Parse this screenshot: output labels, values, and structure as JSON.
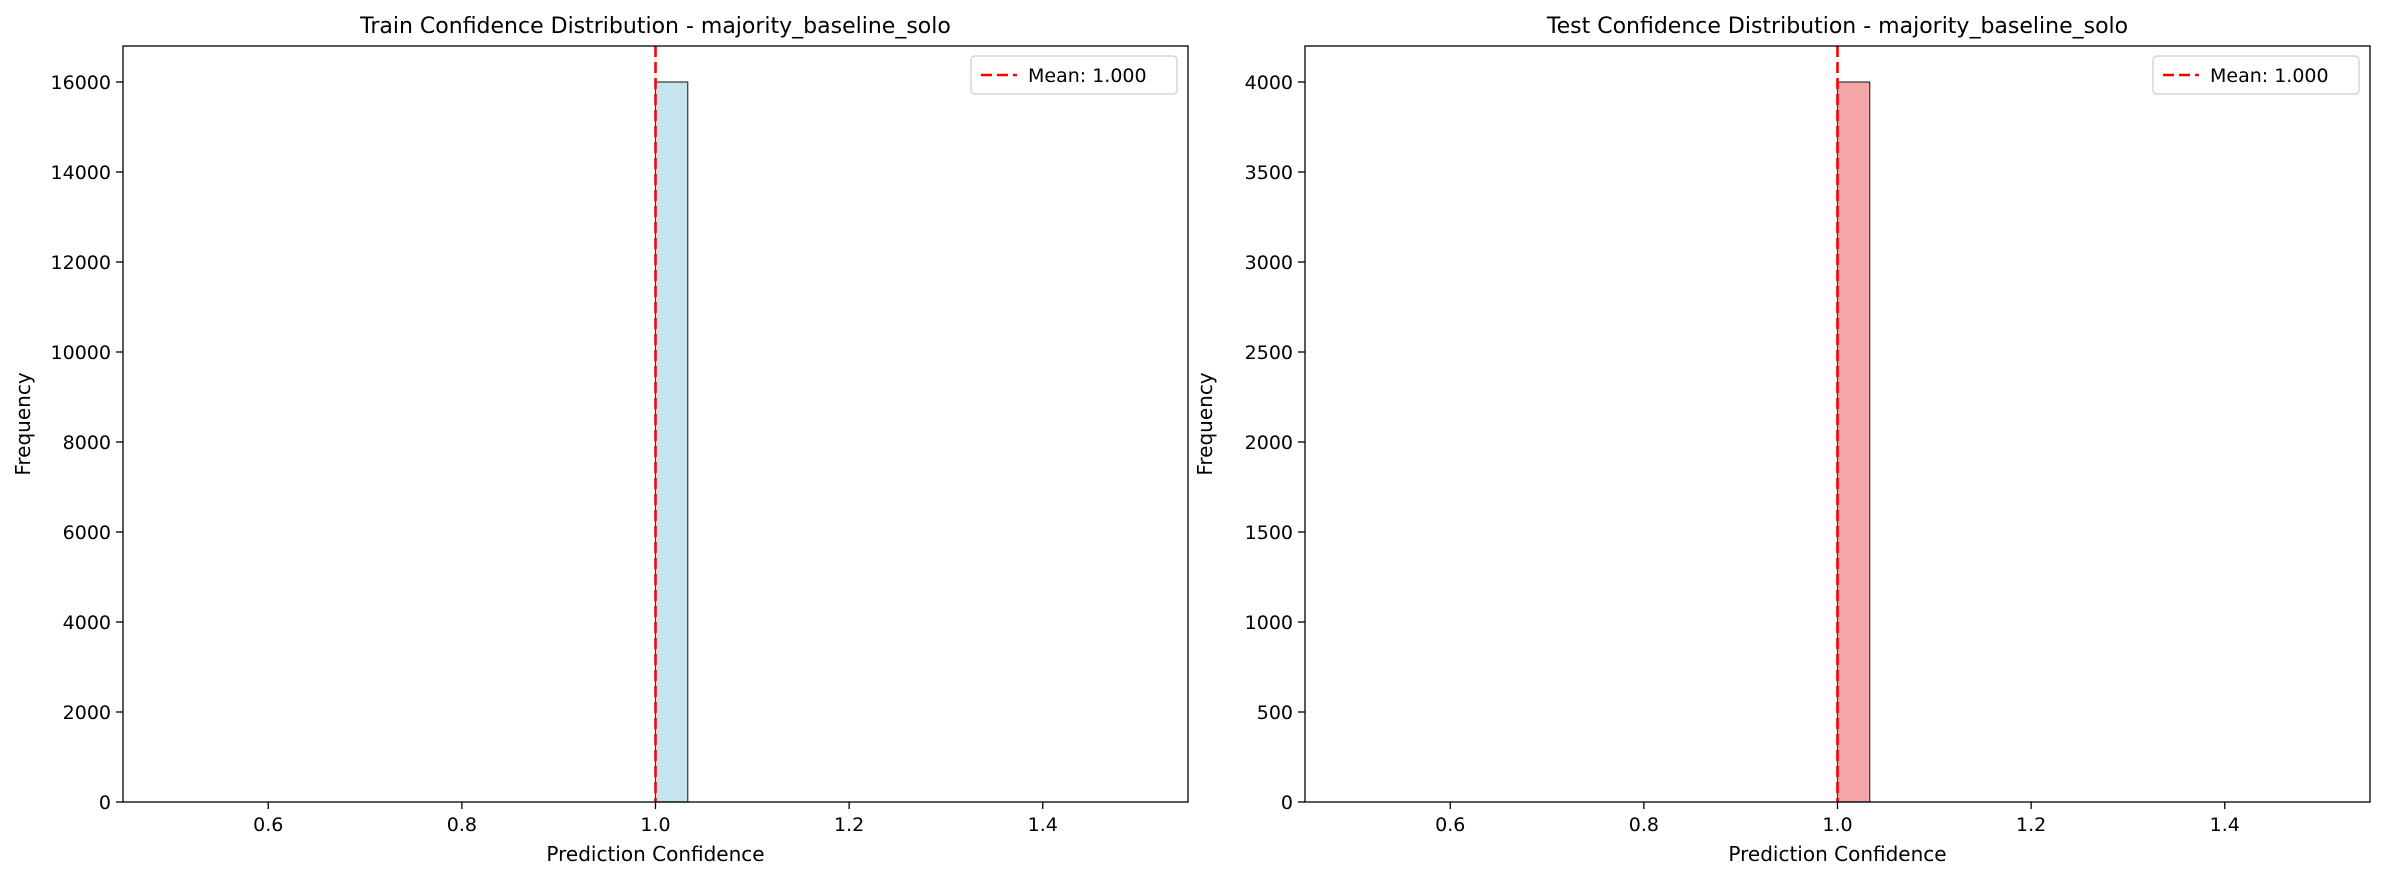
{
  "chart_data": [
    {
      "type": "bar",
      "title": "Train Confidence Distribution - majority_baseline_solo",
      "xlabel": "Prediction Confidence",
      "ylabel": "Frequency",
      "xlim": [
        0.45,
        1.55
      ],
      "ylim": [
        0,
        16800
      ],
      "xticks": [
        "0.6",
        "0.8",
        "1.0",
        "1.2",
        "1.4"
      ],
      "xtick_values": [
        0.6,
        0.8,
        1.0,
        1.2,
        1.4
      ],
      "yticks": [
        "0",
        "2000",
        "4000",
        "6000",
        "8000",
        "10000",
        "12000",
        "14000",
        "16000"
      ],
      "ytick_values": [
        0,
        2000,
        4000,
        6000,
        8000,
        10000,
        12000,
        14000,
        16000
      ],
      "bins": [
        {
          "x0": 1.0,
          "x1": 1.0333,
          "count": 16000
        },
        {
          "x0": 0.5,
          "x1": 1.5,
          "count": 0
        }
      ],
      "mean": 1.0,
      "legend": [
        "Mean: 1.000"
      ],
      "legend_position": "top-right",
      "grid": false,
      "colors": {
        "bar": "#ADD8E6",
        "mean_line": "#FF0000",
        "edge": "#333333"
      }
    },
    {
      "type": "bar",
      "title": "Test Confidence Distribution - majority_baseline_solo",
      "xlabel": "Prediction Confidence",
      "ylabel": "Frequency",
      "xlim": [
        0.45,
        1.55
      ],
      "ylim": [
        0,
        4200
      ],
      "xticks": [
        "0.6",
        "0.8",
        "1.0",
        "1.2",
        "1.4"
      ],
      "xtick_values": [
        0.6,
        0.8,
        1.0,
        1.2,
        1.4
      ],
      "yticks": [
        "0",
        "500",
        "1000",
        "1500",
        "2000",
        "2500",
        "3000",
        "3500",
        "4000"
      ],
      "ytick_values": [
        0,
        500,
        1000,
        1500,
        2000,
        2500,
        3000,
        3500,
        4000
      ],
      "bins": [
        {
          "x0": 1.0,
          "x1": 1.0333,
          "count": 4000
        },
        {
          "x0": 0.5,
          "x1": 1.5,
          "count": 0
        }
      ],
      "mean": 1.0,
      "legend": [
        "Mean: 1.000"
      ],
      "legend_position": "top-right",
      "grid": false,
      "colors": {
        "bar": "#F08080",
        "mean_line": "#FF0000",
        "edge": "#333333"
      }
    }
  ]
}
